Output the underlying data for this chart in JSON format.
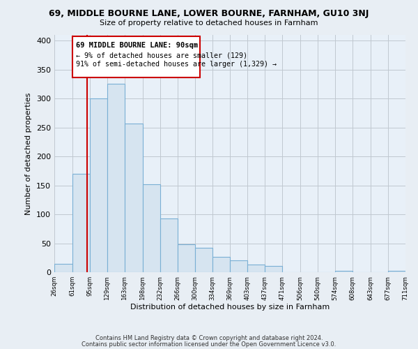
{
  "title": "69, MIDDLE BOURNE LANE, LOWER BOURNE, FARNHAM, GU10 3NJ",
  "subtitle": "Size of property relative to detached houses in Farnham",
  "xlabel": "Distribution of detached houses by size in Farnham",
  "ylabel": "Number of detached properties",
  "bar_edges": [
    26,
    61,
    95,
    129,
    163,
    198,
    232,
    266,
    300,
    334,
    369,
    403,
    437,
    471,
    506,
    540,
    574,
    608,
    643,
    677,
    711
  ],
  "bar_heights": [
    15,
    170,
    300,
    325,
    257,
    152,
    93,
    48,
    42,
    27,
    21,
    13,
    11,
    0,
    0,
    0,
    2,
    0,
    0,
    2
  ],
  "bar_color": "#d6e4f0",
  "bar_edge_color": "#7aafd4",
  "ref_line_x": 90,
  "ref_line_color": "#cc0000",
  "annotation_title": "69 MIDDLE BOURNE LANE: 90sqm",
  "annotation_line1": "← 9% of detached houses are smaller (129)",
  "annotation_line2": "91% of semi-detached houses are larger (1,329) →",
  "annotation_box_color": "#cc0000",
  "ylim": [
    0,
    410
  ],
  "yticks": [
    0,
    50,
    100,
    150,
    200,
    250,
    300,
    350,
    400
  ],
  "tick_labels": [
    "26sqm",
    "61sqm",
    "95sqm",
    "129sqm",
    "163sqm",
    "198sqm",
    "232sqm",
    "266sqm",
    "300sqm",
    "334sqm",
    "369sqm",
    "403sqm",
    "437sqm",
    "471sqm",
    "506sqm",
    "540sqm",
    "574sqm",
    "608sqm",
    "643sqm",
    "677sqm",
    "711sqm"
  ],
  "footer1": "Contains HM Land Registry data © Crown copyright and database right 2024.",
  "footer2": "Contains public sector information licensed under the Open Government Licence v3.0.",
  "bg_color": "#e8eef4",
  "plot_bg_color": "#e8f0f8"
}
